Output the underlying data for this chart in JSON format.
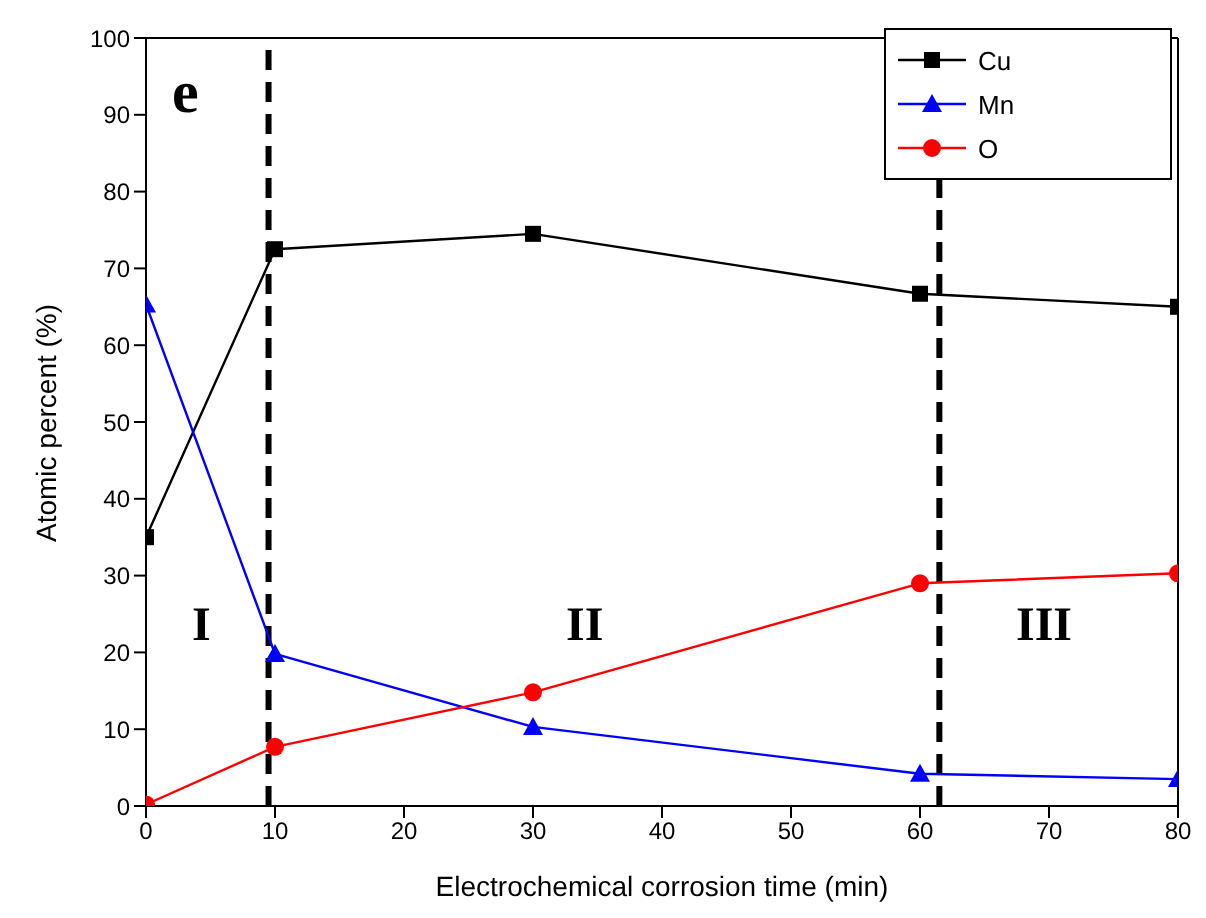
{
  "chart_data": {
    "type": "line",
    "xlabel": "Electrochemical corrosion time (min)",
    "ylabel": "Atomic percent (%)",
    "x": [
      0,
      10,
      30,
      60,
      80
    ],
    "series": [
      {
        "name": "Cu",
        "color": "#000000",
        "marker": "square",
        "values": [
          35,
          72.5,
          74.5,
          66.7,
          65
        ]
      },
      {
        "name": "Mn",
        "color": "#0000ff",
        "marker": "triangle",
        "values": [
          65.3,
          19.8,
          10.3,
          4.2,
          3.5
        ]
      },
      {
        "name": "O",
        "color": "#ff0000",
        "marker": "circle",
        "values": [
          0.2,
          7.7,
          14.8,
          29,
          30.3
        ]
      }
    ],
    "xlim": [
      0,
      80
    ],
    "xticks": [
      0,
      10,
      20,
      30,
      40,
      50,
      60,
      70,
      80
    ],
    "ylim": [
      0,
      100
    ],
    "yticks": [
      0,
      10,
      20,
      30,
      40,
      50,
      60,
      70,
      80,
      90,
      100
    ],
    "ref_lines": [
      {
        "axis": "x",
        "value": 9.5,
        "color": "#000000",
        "line_style": "dashed"
      },
      {
        "axis": "x",
        "value": 61.5,
        "color": "#000000",
        "line_style": "dashed"
      }
    ],
    "annotations": [
      "e",
      "I",
      "II",
      "III"
    ],
    "legend": "top right",
    "grid": false,
    "line_style": "solid"
  }
}
